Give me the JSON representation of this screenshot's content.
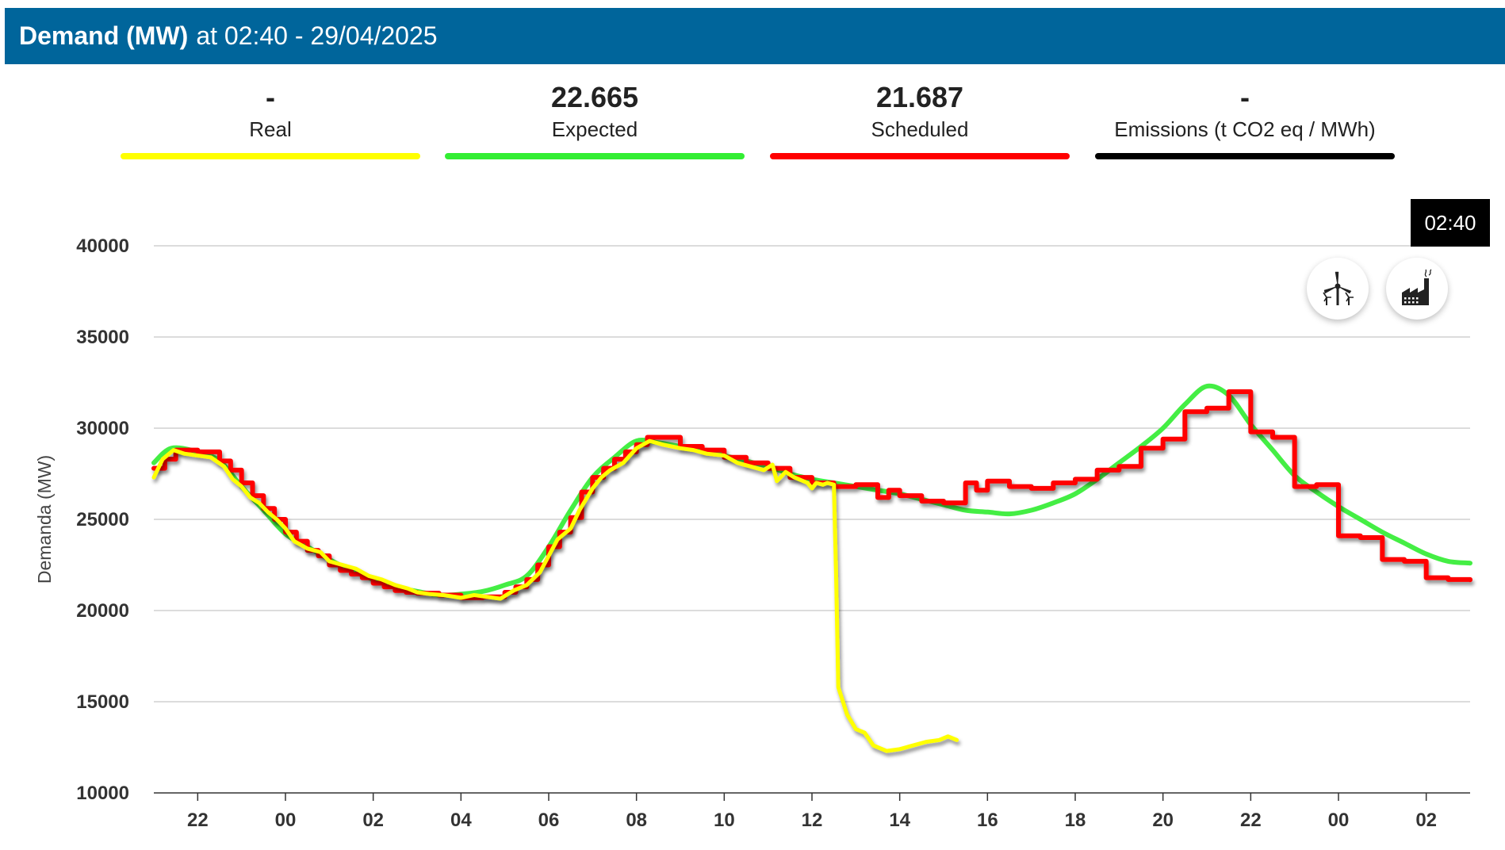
{
  "header": {
    "title": "Demand (MW)",
    "subtitle": "at 02:40 - 29/04/2025"
  },
  "kpis": [
    {
      "value": "-",
      "label": "Real",
      "color": "#ffff00"
    },
    {
      "value": "22.665",
      "label": "Expected",
      "color": "#33ee33"
    },
    {
      "value": "21.687",
      "label": "Scheduled",
      "color": "#ff0000"
    },
    {
      "value": "-",
      "label": "Emissions (t CO2 eq / MWh)",
      "color": "#000000"
    }
  ],
  "tooltip": {
    "text": "02:40"
  },
  "buttons": {
    "wind": "wind-turbine-icon",
    "factory": "factory-icon"
  },
  "chart_data": {
    "type": "line",
    "ylabel": "Demanda (MW)",
    "ylim": [
      10000,
      40000
    ],
    "yticks": [
      10000,
      15000,
      20000,
      25000,
      30000,
      35000,
      40000
    ],
    "xlim": [
      21.0,
      51.0
    ],
    "xticks": [
      {
        "x": 22,
        "label": "22"
      },
      {
        "x": 24,
        "label": "00"
      },
      {
        "x": 26,
        "label": "02"
      },
      {
        "x": 28,
        "label": "04"
      },
      {
        "x": 30,
        "label": "06"
      },
      {
        "x": 32,
        "label": "08"
      },
      {
        "x": 34,
        "label": "10"
      },
      {
        "x": 36,
        "label": "12"
      },
      {
        "x": 38,
        "label": "14"
      },
      {
        "x": 40,
        "label": "16"
      },
      {
        "x": 42,
        "label": "18"
      },
      {
        "x": 44,
        "label": "20"
      },
      {
        "x": 46,
        "label": "22"
      },
      {
        "x": 48,
        "label": "00"
      },
      {
        "x": 50,
        "label": "02"
      }
    ],
    "grid": true,
    "series": [
      {
        "name": "Expected",
        "color": "#44ee44",
        "style": "smooth",
        "points": [
          [
            21.0,
            28100
          ],
          [
            21.4,
            28900
          ],
          [
            22.0,
            28700
          ],
          [
            22.5,
            28200
          ],
          [
            23.0,
            26800
          ],
          [
            23.5,
            25500
          ],
          [
            24.0,
            24200
          ],
          [
            24.5,
            23500
          ],
          [
            25.0,
            22800
          ],
          [
            25.5,
            22200
          ],
          [
            26.0,
            21700
          ],
          [
            26.5,
            21300
          ],
          [
            27.0,
            21050
          ],
          [
            27.5,
            20850
          ],
          [
            28.0,
            20900
          ],
          [
            28.5,
            21050
          ],
          [
            29.0,
            21400
          ],
          [
            29.5,
            21900
          ],
          [
            30.0,
            23500
          ],
          [
            30.5,
            25500
          ],
          [
            31.0,
            27300
          ],
          [
            31.5,
            28400
          ],
          [
            32.0,
            29300
          ],
          [
            32.5,
            29200
          ],
          [
            33.0,
            29000
          ],
          [
            33.5,
            28800
          ],
          [
            34.0,
            28500
          ],
          [
            34.5,
            28200
          ],
          [
            35.0,
            27900
          ],
          [
            35.5,
            27500
          ],
          [
            36.0,
            27200
          ],
          [
            36.5,
            27000
          ],
          [
            37.0,
            26800
          ],
          [
            37.5,
            26600
          ],
          [
            38.0,
            26400
          ],
          [
            38.5,
            26100
          ],
          [
            39.0,
            25800
          ],
          [
            39.5,
            25500
          ],
          [
            40.0,
            25400
          ],
          [
            40.5,
            25300
          ],
          [
            41.0,
            25500
          ],
          [
            41.5,
            25900
          ],
          [
            42.0,
            26400
          ],
          [
            42.5,
            27200
          ],
          [
            43.0,
            28100
          ],
          [
            43.5,
            29000
          ],
          [
            44.0,
            30000
          ],
          [
            44.5,
            31300
          ],
          [
            45.0,
            32300
          ],
          [
            45.5,
            31800
          ],
          [
            46.0,
            30200
          ],
          [
            46.5,
            28800
          ],
          [
            47.0,
            27400
          ],
          [
            47.5,
            26500
          ],
          [
            48.0,
            25700
          ],
          [
            48.5,
            25000
          ],
          [
            49.0,
            24300
          ],
          [
            49.5,
            23700
          ],
          [
            50.0,
            23100
          ],
          [
            50.5,
            22700
          ],
          [
            51.0,
            22600
          ]
        ]
      },
      {
        "name": "Scheduled",
        "color": "#ff0000",
        "style": "step",
        "points": [
          [
            21.0,
            27800
          ],
          [
            21.25,
            28300
          ],
          [
            21.5,
            28800
          ],
          [
            22.0,
            28700
          ],
          [
            22.5,
            28200
          ],
          [
            22.75,
            27700
          ],
          [
            23.0,
            27000
          ],
          [
            23.25,
            26300
          ],
          [
            23.5,
            25600
          ],
          [
            23.75,
            25000
          ],
          [
            24.0,
            24300
          ],
          [
            24.25,
            23800
          ],
          [
            24.5,
            23300
          ],
          [
            24.75,
            23000
          ],
          [
            25.0,
            22500
          ],
          [
            25.25,
            22200
          ],
          [
            25.5,
            22000
          ],
          [
            25.75,
            21800
          ],
          [
            26.0,
            21500
          ],
          [
            26.25,
            21300
          ],
          [
            26.5,
            21100
          ],
          [
            26.75,
            21000
          ],
          [
            27.0,
            20950
          ],
          [
            27.5,
            20850
          ],
          [
            28.0,
            20700
          ],
          [
            28.5,
            20750
          ],
          [
            29.0,
            21000
          ],
          [
            29.25,
            21300
          ],
          [
            29.5,
            21700
          ],
          [
            29.75,
            22500
          ],
          [
            30.0,
            23500
          ],
          [
            30.25,
            24300
          ],
          [
            30.5,
            25100
          ],
          [
            30.75,
            26500
          ],
          [
            31.0,
            27300
          ],
          [
            31.25,
            27800
          ],
          [
            31.5,
            28300
          ],
          [
            31.75,
            28700
          ],
          [
            32.0,
            29100
          ],
          [
            32.25,
            29500
          ],
          [
            33.0,
            29000
          ],
          [
            33.5,
            28800
          ],
          [
            34.0,
            28400
          ],
          [
            34.5,
            28100
          ],
          [
            35.0,
            27800
          ],
          [
            35.5,
            27300
          ],
          [
            36.0,
            27000
          ],
          [
            36.5,
            26800
          ],
          [
            37.0,
            26900
          ],
          [
            37.5,
            26200
          ],
          [
            37.75,
            26600
          ],
          [
            38.0,
            26300
          ],
          [
            38.5,
            26000
          ],
          [
            39.0,
            25900
          ],
          [
            39.5,
            27000
          ],
          [
            39.75,
            26600
          ],
          [
            40.0,
            27100
          ],
          [
            40.5,
            26800
          ],
          [
            41.0,
            26700
          ],
          [
            41.5,
            27000
          ],
          [
            42.0,
            27200
          ],
          [
            42.5,
            27700
          ],
          [
            43.0,
            27900
          ],
          [
            43.5,
            28900
          ],
          [
            44.0,
            29400
          ],
          [
            44.5,
            30900
          ],
          [
            45.0,
            31100
          ],
          [
            45.5,
            32000
          ],
          [
            46.0,
            29800
          ],
          [
            46.5,
            29500
          ],
          [
            47.0,
            26800
          ],
          [
            47.5,
            26900
          ],
          [
            48.0,
            24100
          ],
          [
            48.5,
            24000
          ],
          [
            49.0,
            22800
          ],
          [
            49.5,
            22700
          ],
          [
            50.0,
            21800
          ],
          [
            50.5,
            21700
          ],
          [
            51.0,
            21687
          ]
        ]
      },
      {
        "name": "Real",
        "color": "#ffff00",
        "style": "noisy",
        "points": [
          [
            21.0,
            27300
          ],
          [
            21.2,
            28300
          ],
          [
            21.45,
            28800
          ],
          [
            21.7,
            28600
          ],
          [
            22.0,
            28500
          ],
          [
            22.3,
            28400
          ],
          [
            22.6,
            27900
          ],
          [
            22.8,
            27200
          ],
          [
            23.0,
            26800
          ],
          [
            23.2,
            26200
          ],
          [
            23.4,
            25900
          ],
          [
            23.6,
            25400
          ],
          [
            23.8,
            25000
          ],
          [
            24.0,
            24500
          ],
          [
            24.2,
            23800
          ],
          [
            24.5,
            23400
          ],
          [
            24.8,
            23200
          ],
          [
            25.0,
            22700
          ],
          [
            25.3,
            22500
          ],
          [
            25.6,
            22300
          ],
          [
            25.9,
            21900
          ],
          [
            26.2,
            21700
          ],
          [
            26.5,
            21400
          ],
          [
            26.8,
            21200
          ],
          [
            27.0,
            21000
          ],
          [
            27.3,
            20900
          ],
          [
            27.6,
            20850
          ],
          [
            28.0,
            20700
          ],
          [
            28.3,
            20850
          ],
          [
            28.6,
            20750
          ],
          [
            28.9,
            20650
          ],
          [
            29.2,
            21100
          ],
          [
            29.5,
            21400
          ],
          [
            29.8,
            22100
          ],
          [
            30.0,
            23000
          ],
          [
            30.2,
            23900
          ],
          [
            30.5,
            24500
          ],
          [
            30.7,
            25500
          ],
          [
            31.0,
            26700
          ],
          [
            31.2,
            27300
          ],
          [
            31.4,
            27700
          ],
          [
            31.7,
            28100
          ],
          [
            32.0,
            28900
          ],
          [
            32.3,
            29300
          ],
          [
            32.6,
            29100
          ],
          [
            33.0,
            28900
          ],
          [
            33.3,
            28800
          ],
          [
            33.6,
            28600
          ],
          [
            34.0,
            28500
          ],
          [
            34.3,
            28100
          ],
          [
            34.6,
            27900
          ],
          [
            34.9,
            27700
          ],
          [
            35.1,
            28000
          ],
          [
            35.2,
            27100
          ],
          [
            35.4,
            27600
          ],
          [
            35.6,
            27300
          ],
          [
            35.9,
            27000
          ],
          [
            36.0,
            26700
          ],
          [
            36.1,
            27000
          ],
          [
            36.25,
            26900
          ],
          [
            36.35,
            27000
          ],
          [
            36.5,
            26900
          ],
          [
            36.55,
            22000
          ],
          [
            36.6,
            15800
          ],
          [
            36.8,
            14300
          ],
          [
            37.0,
            13500
          ],
          [
            37.2,
            13300
          ],
          [
            37.4,
            12600
          ],
          [
            37.7,
            12300
          ],
          [
            38.0,
            12400
          ],
          [
            38.3,
            12600
          ],
          [
            38.6,
            12800
          ],
          [
            38.9,
            12900
          ],
          [
            39.1,
            13100
          ],
          [
            39.3,
            12900
          ]
        ]
      }
    ]
  }
}
